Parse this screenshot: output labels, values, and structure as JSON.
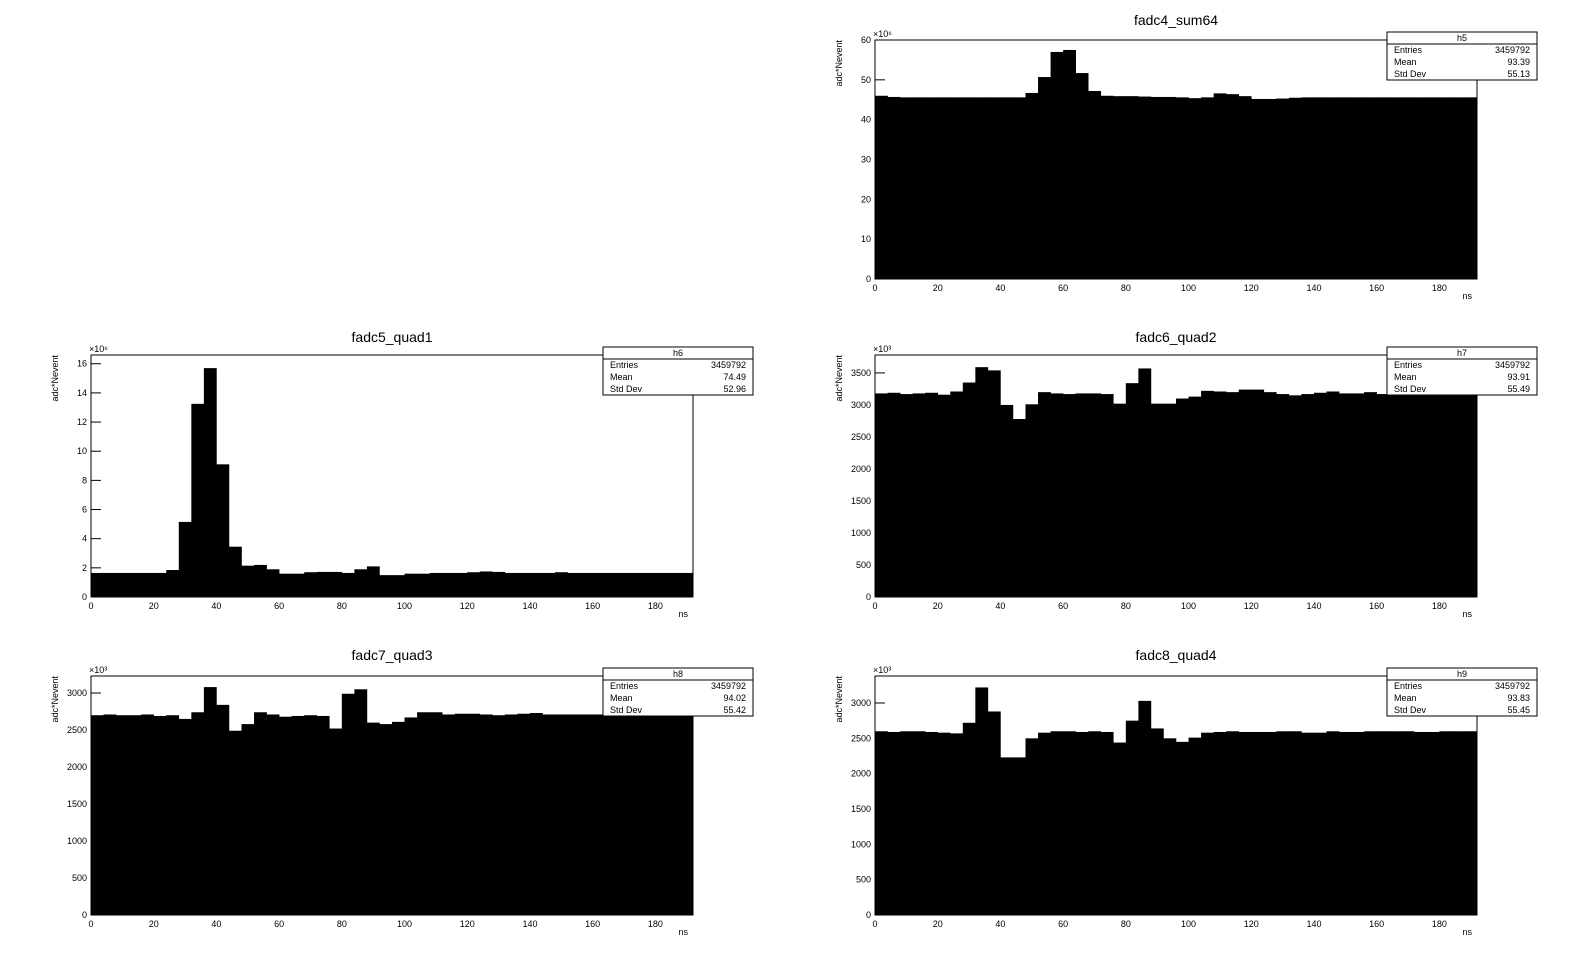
{
  "chart_data": [
    {
      "type": "histogram",
      "title": "fadc4_sum64",
      "x_label": "ns",
      "y_label": "adc*Nevent",
      "y_multiplier": "×10⁶",
      "color": "#000000",
      "bins": [
        0,
        4,
        8,
        12,
        16,
        20,
        24,
        28,
        32,
        36,
        40,
        44,
        48,
        52,
        56,
        60,
        64,
        68,
        72,
        76,
        80,
        84,
        88,
        92,
        96,
        100,
        104,
        108,
        112,
        116,
        120,
        124,
        128,
        132,
        136,
        140,
        144,
        148,
        152,
        156,
        160,
        164,
        168,
        172,
        176,
        180,
        184,
        188,
        192
      ],
      "values": [
        46,
        45.7,
        45.6,
        45.6,
        45.6,
        45.6,
        45.6,
        45.6,
        45.6,
        45.6,
        45.6,
        45.6,
        46.7,
        50.7,
        57,
        57.5,
        51.7,
        47.2,
        46,
        45.9,
        45.9,
        45.8,
        45.7,
        45.7,
        45.6,
        45.4,
        45.6,
        46.6,
        46.4,
        45.9,
        45.2,
        45.2,
        45.3,
        45.5,
        45.6,
        45.6,
        45.6,
        45.6,
        45.6,
        45.6,
        45.6,
        45.6,
        45.6,
        45.6,
        45.6,
        45.6,
        45.6,
        45.6
      ],
      "xlim": [
        0,
        192
      ],
      "xticks": [
        0,
        20,
        40,
        60,
        80,
        100,
        120,
        140,
        160,
        180
      ],
      "ylim": [
        0,
        60
      ],
      "yticks": [
        0,
        10,
        20,
        30,
        40,
        50,
        60
      ],
      "stats": {
        "name": "h5",
        "labels": [
          "Entries",
          "Mean",
          "Std Dev"
        ],
        "values": [
          3459792,
          93.39,
          55.13
        ]
      }
    },
    {
      "type": "histogram",
      "title": "fadc5_quad1",
      "x_label": "ns",
      "y_label": "adc*Nevent",
      "y_multiplier": "×10⁶",
      "color": "#000000",
      "bins": [
        0,
        4,
        8,
        12,
        16,
        20,
        24,
        28,
        32,
        36,
        40,
        44,
        48,
        52,
        56,
        60,
        64,
        68,
        72,
        76,
        80,
        84,
        88,
        92,
        96,
        100,
        104,
        108,
        112,
        116,
        120,
        124,
        128,
        132,
        136,
        140,
        144,
        148,
        152,
        156,
        160,
        164,
        168,
        172,
        176,
        180,
        184,
        188,
        192
      ],
      "values": [
        1.65,
        1.65,
        1.65,
        1.65,
        1.65,
        1.65,
        1.85,
        5.15,
        13.25,
        15.7,
        9.1,
        3.45,
        2.15,
        2.2,
        1.9,
        1.6,
        1.6,
        1.7,
        1.72,
        1.72,
        1.65,
        1.9,
        2.1,
        1.5,
        1.5,
        1.6,
        1.6,
        1.65,
        1.65,
        1.65,
        1.7,
        1.75,
        1.72,
        1.65,
        1.65,
        1.65,
        1.65,
        1.7,
        1.65,
        1.65,
        1.65,
        1.65,
        1.65,
        1.65,
        1.65,
        1.65,
        1.65,
        1.65
      ],
      "xlim": [
        0,
        192
      ],
      "xticks": [
        0,
        20,
        40,
        60,
        80,
        100,
        120,
        140,
        160,
        180
      ],
      "ylim": [
        0,
        16.6
      ],
      "yticks": [
        0,
        2,
        4,
        6,
        8,
        10,
        12,
        14,
        16
      ],
      "stats": {
        "name": "h6",
        "labels": [
          "Entries",
          "Mean",
          "Std Dev"
        ],
        "values": [
          3459792,
          74.49,
          52.96
        ]
      }
    },
    {
      "type": "histogram",
      "title": "fadc6_quad2",
      "x_label": "ns",
      "y_label": "adc*Nevent",
      "y_multiplier": "×10³",
      "color": "#000000",
      "bins": [
        0,
        4,
        8,
        12,
        16,
        20,
        24,
        28,
        32,
        36,
        40,
        44,
        48,
        52,
        56,
        60,
        64,
        68,
        72,
        76,
        80,
        84,
        88,
        92,
        96,
        100,
        104,
        108,
        112,
        116,
        120,
        124,
        128,
        132,
        136,
        140,
        144,
        148,
        152,
        156,
        160,
        164,
        168,
        172,
        176,
        180,
        184,
        188,
        192
      ],
      "values": [
        3180,
        3190,
        3170,
        3180,
        3190,
        3160,
        3210,
        3350,
        3590,
        3540,
        3000,
        2780,
        3010,
        3200,
        3180,
        3170,
        3180,
        3180,
        3170,
        3020,
        3340,
        3570,
        3020,
        3020,
        3100,
        3130,
        3220,
        3210,
        3200,
        3240,
        3240,
        3200,
        3170,
        3150,
        3170,
        3190,
        3210,
        3180,
        3180,
        3200,
        3170,
        3170,
        3170,
        3170,
        3170,
        3170,
        3170,
        3170
      ],
      "xlim": [
        0,
        192
      ],
      "xticks": [
        0,
        20,
        40,
        60,
        80,
        100,
        120,
        140,
        160,
        180
      ],
      "ylim": [
        0,
        3780
      ],
      "yticks": [
        0,
        500,
        1000,
        1500,
        2000,
        2500,
        3000,
        3500
      ],
      "stats": {
        "name": "h7",
        "labels": [
          "Entries",
          "Mean",
          "Std Dev"
        ],
        "values": [
          3459792,
          93.91,
          55.49
        ]
      }
    },
    {
      "type": "histogram",
      "title": "fadc7_quad3",
      "x_label": "ns",
      "y_label": "adc*Nevent",
      "y_multiplier": "×10³",
      "color": "#000000",
      "bins": [
        0,
        4,
        8,
        12,
        16,
        20,
        24,
        28,
        32,
        36,
        40,
        44,
        48,
        52,
        56,
        60,
        64,
        68,
        72,
        76,
        80,
        84,
        88,
        92,
        96,
        100,
        104,
        108,
        112,
        116,
        120,
        124,
        128,
        132,
        136,
        140,
        144,
        148,
        152,
        156,
        160,
        164,
        168,
        172,
        176,
        180,
        184,
        188,
        192
      ],
      "values": [
        2700,
        2710,
        2700,
        2700,
        2710,
        2690,
        2700,
        2650,
        2740,
        3080,
        2840,
        2490,
        2580,
        2740,
        2710,
        2680,
        2690,
        2700,
        2690,
        2520,
        2990,
        3050,
        2600,
        2580,
        2610,
        2670,
        2740,
        2740,
        2710,
        2720,
        2720,
        2710,
        2700,
        2710,
        2720,
        2730,
        2710,
        2710,
        2710,
        2710,
        2710,
        2710,
        2710,
        2710,
        2710,
        2710,
        2710,
        2710
      ],
      "xlim": [
        0,
        192
      ],
      "xticks": [
        0,
        20,
        40,
        60,
        80,
        100,
        120,
        140,
        160,
        180
      ],
      "ylim": [
        0,
        3230
      ],
      "yticks": [
        0,
        500,
        1000,
        1500,
        2000,
        2500,
        3000
      ],
      "stats": {
        "name": "h8",
        "labels": [
          "Entries",
          "Mean",
          "Std Dev"
        ],
        "values": [
          3459792,
          94.02,
          55.42
        ]
      }
    },
    {
      "type": "histogram",
      "title": "fadc8_quad4",
      "x_label": "ns",
      "y_label": "adc*Nevent",
      "y_multiplier": "×10³",
      "color": "#000000",
      "bins": [
        0,
        4,
        8,
        12,
        16,
        20,
        24,
        28,
        32,
        36,
        40,
        44,
        48,
        52,
        56,
        60,
        64,
        68,
        72,
        76,
        80,
        84,
        88,
        92,
        96,
        100,
        104,
        108,
        112,
        116,
        120,
        124,
        128,
        132,
        136,
        140,
        144,
        148,
        152,
        156,
        160,
        164,
        168,
        172,
        176,
        180,
        184,
        188,
        192
      ],
      "values": [
        2600,
        2590,
        2600,
        2600,
        2590,
        2580,
        2570,
        2720,
        3220,
        2880,
        2230,
        2230,
        2500,
        2580,
        2600,
        2600,
        2590,
        2600,
        2590,
        2440,
        2750,
        3030,
        2640,
        2500,
        2450,
        2510,
        2580,
        2590,
        2600,
        2590,
        2590,
        2590,
        2600,
        2600,
        2580,
        2580,
        2600,
        2590,
        2590,
        2600,
        2600,
        2600,
        2600,
        2590,
        2590,
        2600,
        2600,
        2600
      ],
      "xlim": [
        0,
        192
      ],
      "xticks": [
        0,
        20,
        40,
        60,
        80,
        100,
        120,
        140,
        160,
        180
      ],
      "ylim": [
        0,
        3382
      ],
      "yticks": [
        0,
        500,
        1000,
        1500,
        2000,
        2500,
        3000
      ],
      "stats": {
        "name": "h9",
        "labels": [
          "Entries",
          "Mean",
          "Std Dev"
        ],
        "values": [
          3459792,
          93.83,
          55.45
        ]
      }
    }
  ]
}
